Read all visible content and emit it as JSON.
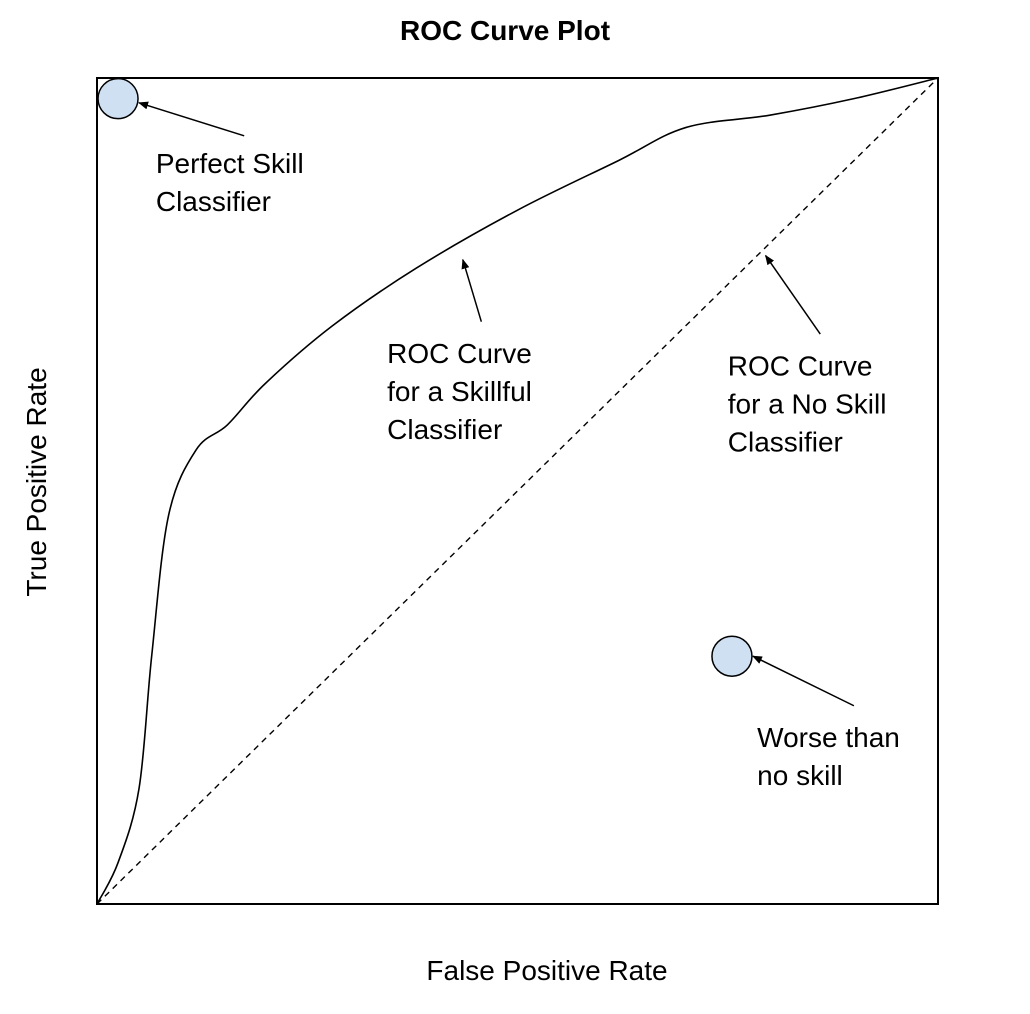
{
  "chart_data": {
    "type": "line",
    "title": "ROC Curve Plot",
    "xlabel": "False Positive Rate",
    "ylabel": "True Positive Rate",
    "xlim": [
      0,
      1
    ],
    "ylim": [
      0,
      1
    ],
    "grid": false,
    "colors": {
      "line": "#000000",
      "marker_fill": "#cfe0f3",
      "marker_stroke": "#000000"
    },
    "series": [
      {
        "style": "solid",
        "points": [
          [
            0,
            0
          ],
          [
            0.025,
            0.05
          ],
          [
            0.05,
            0.14
          ],
          [
            0.065,
            0.3
          ],
          [
            0.085,
            0.47
          ],
          [
            0.118,
            0.55
          ],
          [
            0.155,
            0.58
          ],
          [
            0.2,
            0.63
          ],
          [
            0.28,
            0.7
          ],
          [
            0.38,
            0.77
          ],
          [
            0.5,
            0.84
          ],
          [
            0.62,
            0.9
          ],
          [
            0.7,
            0.94
          ],
          [
            0.8,
            0.955
          ],
          [
            0.9,
            0.975
          ],
          [
            1,
            1
          ]
        ]
      },
      {
        "style": "dashed",
        "points": [
          [
            0,
            0
          ],
          [
            1,
            1
          ]
        ]
      }
    ],
    "markers": [
      {
        "x": 0.025,
        "y": 0.975
      },
      {
        "x": 0.755,
        "y": 0.3
      }
    ],
    "annotations": [
      {
        "lines": [
          "Perfect Skill",
          "Classifier"
        ],
        "target": [
          0.05,
          0.97
        ],
        "tail": [
          0.175,
          0.93
        ],
        "text_at": [
          0.07,
          0.885
        ]
      },
      {
        "lines": [
          "ROC Curve",
          "for a Skillful",
          "Classifier"
        ],
        "target": [
          0.435,
          0.78
        ],
        "tail": [
          0.457,
          0.705
        ],
        "text_at": [
          0.345,
          0.655
        ]
      },
      {
        "lines": [
          "ROC Curve",
          "for a No Skill",
          "Classifier"
        ],
        "target": [
          0.795,
          0.785
        ],
        "tail": [
          0.86,
          0.69
        ],
        "text_at": [
          0.75,
          0.64
        ]
      },
      {
        "lines": [
          "Worse than",
          "no skill"
        ],
        "target": [
          0.78,
          0.3
        ],
        "tail": [
          0.9,
          0.24
        ],
        "text_at": [
          0.785,
          0.19
        ]
      }
    ]
  }
}
